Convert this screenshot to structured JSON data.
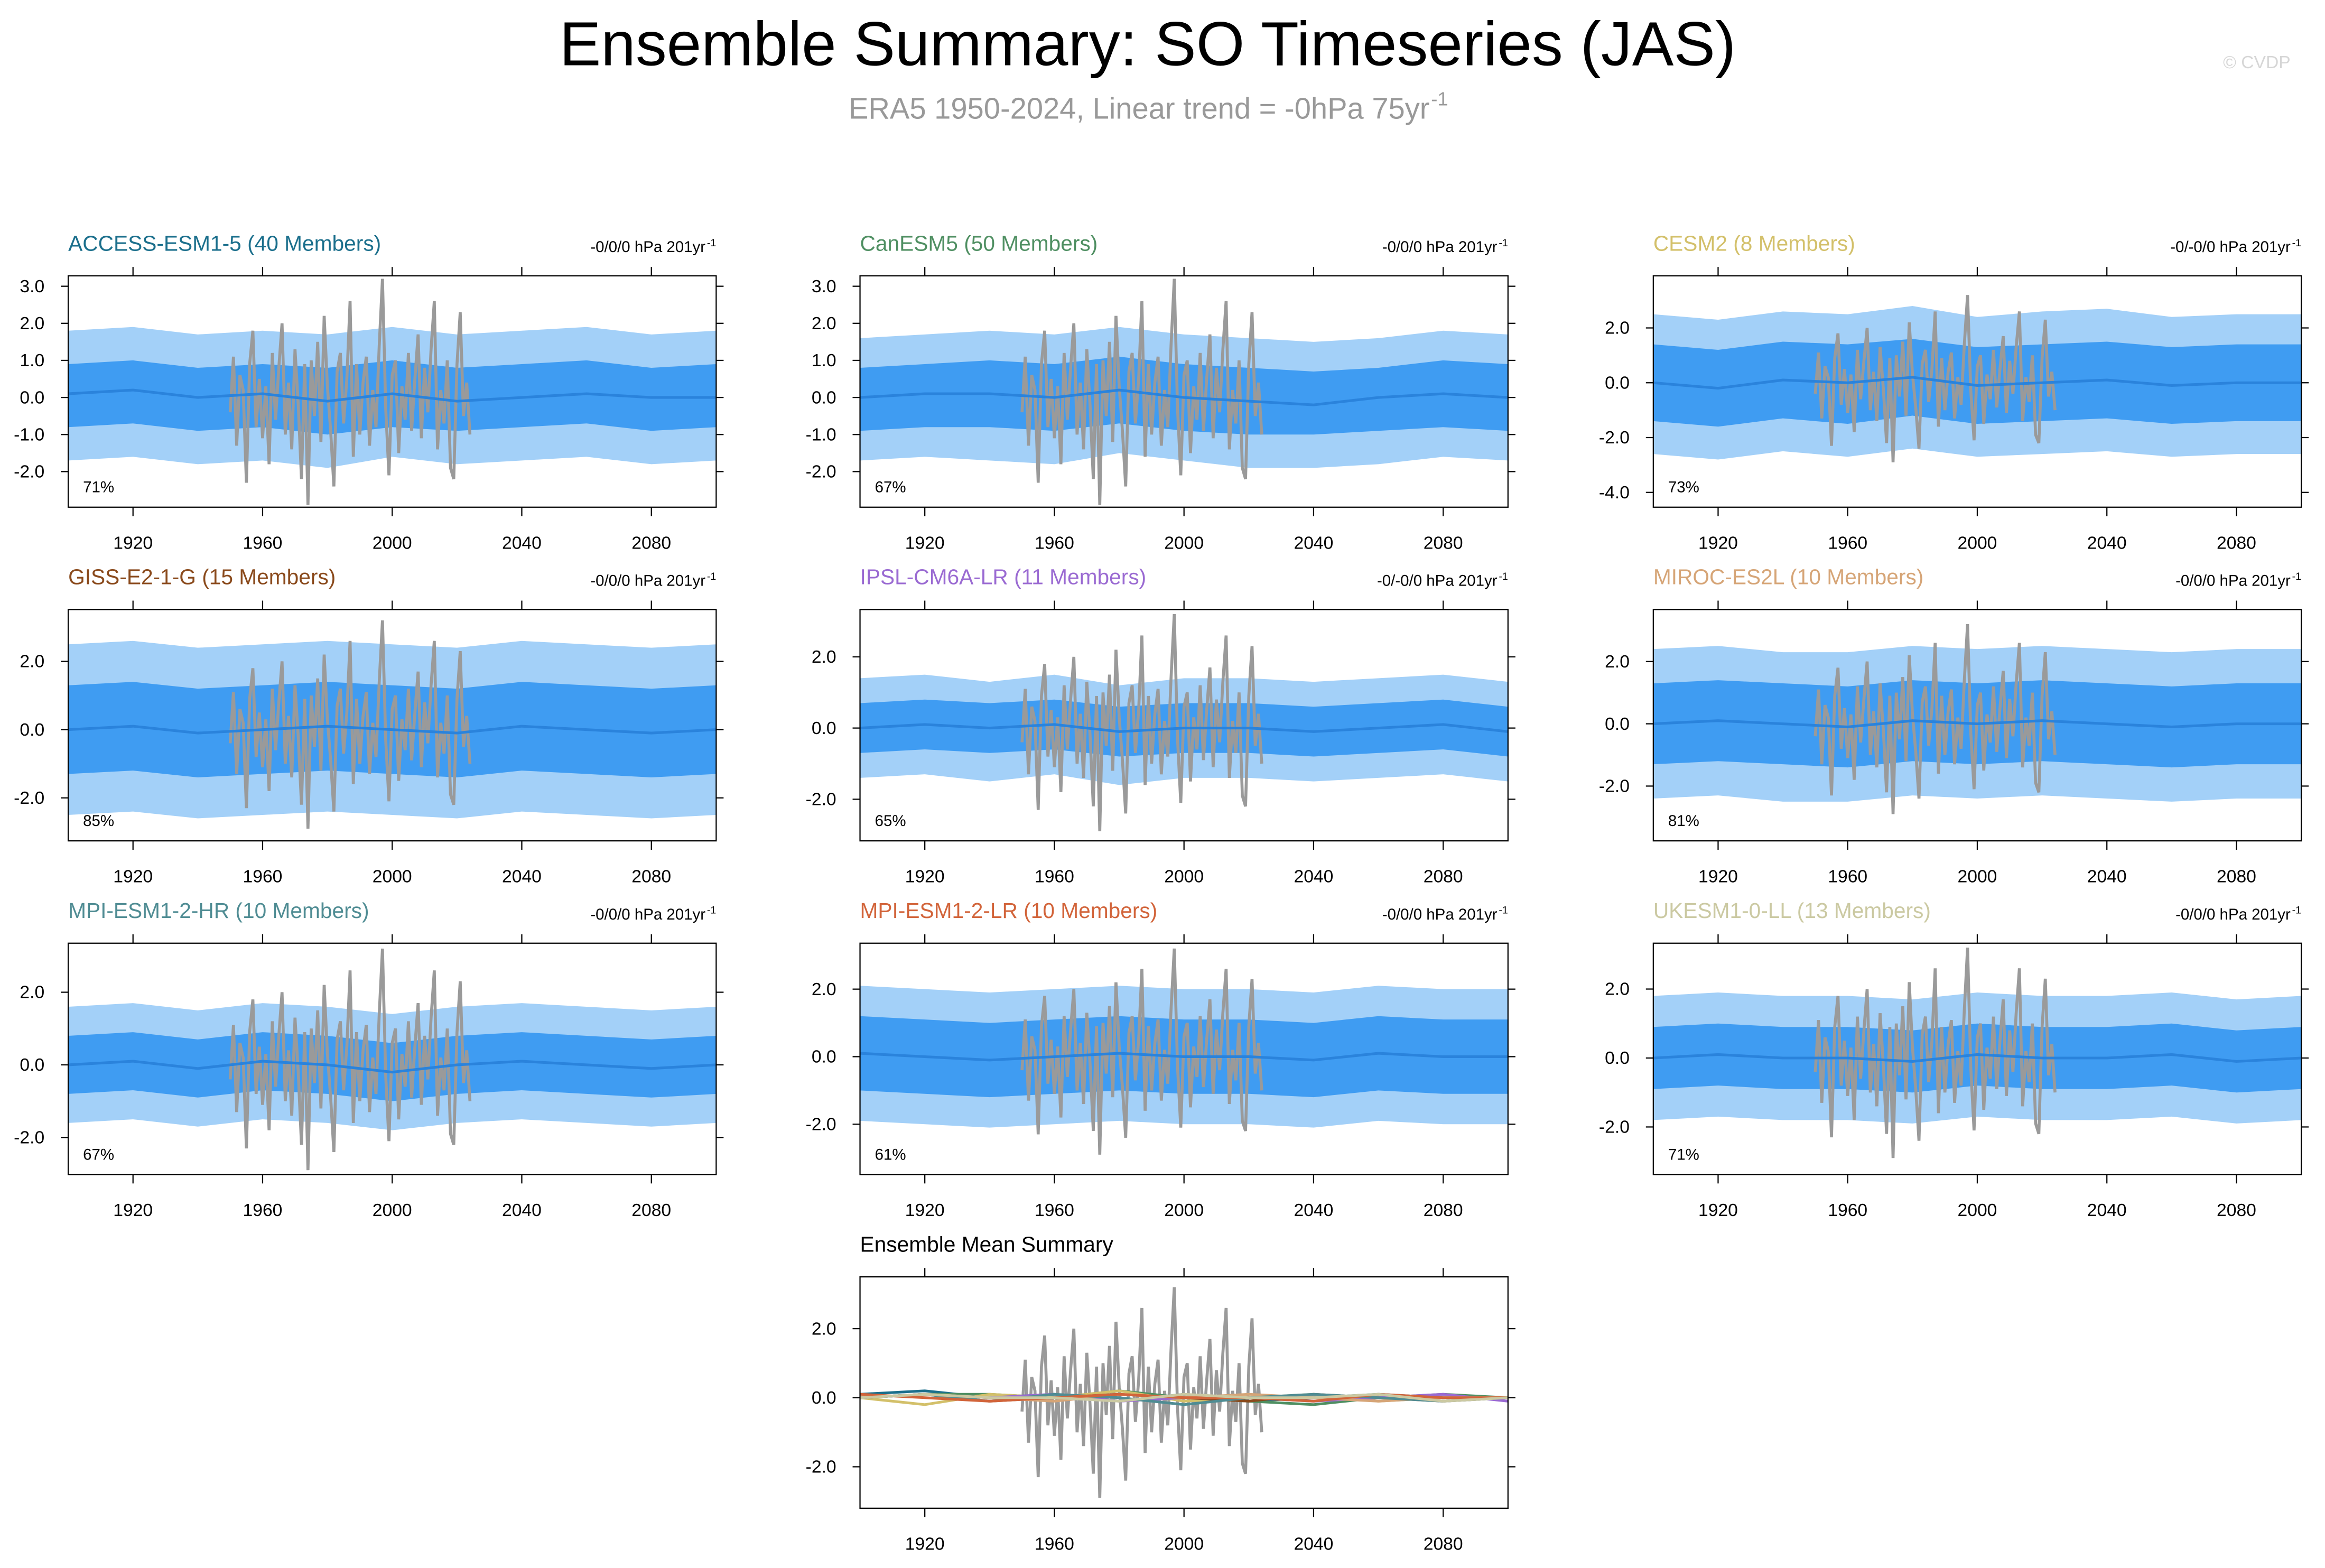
{
  "title": "Ensemble Summary: SO Timeseries (JAS)",
  "subtitle": "ERA5 1950-2024, Linear trend = -0hPa 75yr",
  "subtitle_sup": "-1",
  "watermark": "© CVDP",
  "band_colors": {
    "outer": "#a3d0f8",
    "inner": "#3f9cf2",
    "mean": "#2a83dc"
  },
  "observed": {
    "color": "#9a9a9a",
    "x": [
      1950,
      1951,
      1952,
      1953,
      1954,
      1955,
      1956,
      1957,
      1958,
      1959,
      1960,
      1961,
      1962,
      1963,
      1964,
      1965,
      1966,
      1967,
      1968,
      1969,
      1970,
      1971,
      1972,
      1973,
      1974,
      1975,
      1976,
      1977,
      1978,
      1979,
      1980,
      1981,
      1982,
      1983,
      1984,
      1985,
      1986,
      1987,
      1988,
      1989,
      1990,
      1991,
      1992,
      1993,
      1994,
      1995,
      1996,
      1997,
      1998,
      1999,
      2000,
      2001,
      2002,
      2003,
      2004,
      2005,
      2006,
      2007,
      2008,
      2009,
      2010,
      2011,
      2012,
      2013,
      2014,
      2015,
      2016,
      2017,
      2018,
      2019,
      2020,
      2021,
      2022,
      2023,
      2024
    ],
    "values": [
      -0.4,
      1.1,
      -1.3,
      0.6,
      0.2,
      -2.3,
      0.9,
      1.8,
      -0.8,
      0.5,
      -1.1,
      0.3,
      -1.8,
      1.2,
      -0.6,
      0.8,
      2.0,
      -1.0,
      0.4,
      -1.4,
      1.3,
      -0.2,
      -2.2,
      0.9,
      -2.9,
      1.0,
      -0.5,
      1.5,
      -1.2,
      2.2,
      0.3,
      -0.9,
      -2.4,
      0.7,
      1.2,
      -0.7,
      0.5,
      2.6,
      -1.6,
      0.9,
      -1.0,
      0.4,
      1.1,
      -1.3,
      0.2,
      -0.8,
      1.4,
      3.2,
      -0.3,
      -2.1,
      0.6,
      1.0,
      -1.5,
      0.3,
      -0.6,
      1.2,
      -0.9,
      0.5,
      1.7,
      -1.1,
      0.8,
      -0.4,
      1.3,
      2.6,
      -1.4,
      0.2,
      -0.7,
      1.0,
      -1.9,
      -2.2,
      0.9,
      2.3,
      -0.5,
      0.4,
      -1.0
    ]
  },
  "chart_data": [
    {
      "type": "area",
      "title": "ACCESS-ESM1-5 (40 Members)",
      "title_color": "#1b6f8c",
      "trend_label": "-0/0/0 hPa 201yr",
      "trend_sup": "-1",
      "pct_label": "71%",
      "xlim": [
        1900,
        2100
      ],
      "xticks": [
        1920,
        1960,
        2000,
        2040,
        2080
      ],
      "ylim": [
        -2.96,
        3.28
      ],
      "yticks": [
        {
          "value": 3,
          "label": "3.0"
        },
        {
          "value": 2,
          "label": "2.0"
        },
        {
          "value": 1,
          "label": "1.0"
        },
        {
          "value": 0,
          "label": "0.0"
        },
        {
          "value": -1,
          "label": "-1.0"
        },
        {
          "value": -2,
          "label": "-2.0"
        }
      ],
      "x": [
        1900,
        1920,
        1940,
        1960,
        1980,
        2000,
        2020,
        2040,
        2060,
        2080,
        2100
      ],
      "mean": [
        0.1,
        0.2,
        0.0,
        0.1,
        -0.1,
        0.1,
        -0.1,
        0.0,
        0.1,
        0.0,
        0.0
      ],
      "inner_band": {
        "lower": [
          -0.8,
          -0.7,
          -0.9,
          -0.8,
          -1.0,
          -0.8,
          -0.9,
          -0.8,
          -0.7,
          -0.9,
          -0.8
        ],
        "upper": [
          0.9,
          1.0,
          0.8,
          0.9,
          0.8,
          1.0,
          0.8,
          0.9,
          1.0,
          0.8,
          0.9
        ]
      },
      "outer_band": {
        "lower": [
          -1.7,
          -1.6,
          -1.8,
          -1.7,
          -1.9,
          -1.6,
          -1.8,
          -1.7,
          -1.6,
          -1.8,
          -1.7
        ],
        "upper": [
          1.8,
          1.9,
          1.7,
          1.8,
          1.7,
          1.9,
          1.7,
          1.8,
          1.9,
          1.7,
          1.8
        ]
      }
    },
    {
      "type": "area",
      "title": "CanESM5 (50 Members)",
      "title_color": "#4f8f62",
      "trend_label": "-0/0/0 hPa 201yr",
      "trend_sup": "-1",
      "pct_label": "67%",
      "xlim": [
        1900,
        2100
      ],
      "xticks": [
        1920,
        1960,
        2000,
        2040,
        2080
      ],
      "ylim": [
        -2.96,
        3.28
      ],
      "yticks": [
        {
          "value": 3,
          "label": "3.0"
        },
        {
          "value": 2,
          "label": "2.0"
        },
        {
          "value": 1,
          "label": "1.0"
        },
        {
          "value": 0,
          "label": "0.0"
        },
        {
          "value": -1,
          "label": "-1.0"
        },
        {
          "value": -2,
          "label": "-2.0"
        }
      ],
      "x": [
        1900,
        1920,
        1940,
        1960,
        1980,
        2000,
        2020,
        2040,
        2060,
        2080,
        2100
      ],
      "mean": [
        0.0,
        0.1,
        0.1,
        0.0,
        0.2,
        0.0,
        -0.1,
        -0.2,
        0.0,
        0.1,
        0.0
      ],
      "inner_band": {
        "lower": [
          -0.9,
          -0.8,
          -0.8,
          -0.9,
          -0.7,
          -0.9,
          -1.0,
          -1.0,
          -0.9,
          -0.8,
          -0.9
        ],
        "upper": [
          0.8,
          0.9,
          1.0,
          0.9,
          1.1,
          0.9,
          0.8,
          0.7,
          0.8,
          1.0,
          0.9
        ]
      },
      "outer_band": {
        "lower": [
          -1.7,
          -1.6,
          -1.7,
          -1.8,
          -1.5,
          -1.7,
          -1.9,
          -1.9,
          -1.8,
          -1.6,
          -1.7
        ],
        "upper": [
          1.6,
          1.7,
          1.8,
          1.7,
          1.9,
          1.7,
          1.6,
          1.5,
          1.6,
          1.8,
          1.7
        ]
      }
    },
    {
      "type": "area",
      "title": "CESM2 (8 Members)",
      "title_color": "#d3c06a",
      "trend_label": "-0/-0/0 hPa 201yr",
      "trend_sup": "-1",
      "pct_label": "73%",
      "xlim": [
        1900,
        2100
      ],
      "xticks": [
        1920,
        1960,
        2000,
        2040,
        2080
      ],
      "ylim": [
        -4.54,
        3.9
      ],
      "yticks": [
        {
          "value": 2,
          "label": "2.0"
        },
        {
          "value": 0,
          "label": "0.0"
        },
        {
          "value": -2,
          "label": "-2.0"
        },
        {
          "value": -4,
          "label": "-4.0"
        }
      ],
      "x": [
        1900,
        1920,
        1940,
        1960,
        1980,
        2000,
        2020,
        2040,
        2060,
        2080,
        2100
      ],
      "mean": [
        0.0,
        -0.2,
        0.1,
        0.0,
        0.2,
        -0.1,
        0.0,
        0.1,
        -0.1,
        0.0,
        0.0
      ],
      "inner_band": {
        "lower": [
          -1.4,
          -1.6,
          -1.3,
          -1.5,
          -1.2,
          -1.5,
          -1.4,
          -1.3,
          -1.5,
          -1.4,
          -1.4
        ],
        "upper": [
          1.4,
          1.2,
          1.5,
          1.4,
          1.6,
          1.3,
          1.4,
          1.5,
          1.3,
          1.4,
          1.4
        ]
      },
      "outer_band": {
        "lower": [
          -2.6,
          -2.8,
          -2.5,
          -2.7,
          -2.4,
          -2.7,
          -2.6,
          -2.5,
          -2.7,
          -2.6,
          -2.6
        ],
        "upper": [
          2.5,
          2.3,
          2.6,
          2.5,
          2.8,
          2.4,
          2.6,
          2.7,
          2.4,
          2.5,
          2.5
        ]
      }
    },
    {
      "type": "area",
      "title": "GISS-E2-1-G (15 Members)",
      "title_color": "#8a4a1c",
      "trend_label": "-0/0/0 hPa 201yr",
      "trend_sup": "-1",
      "pct_label": "85%",
      "xlim": [
        1900,
        2100
      ],
      "xticks": [
        1920,
        1960,
        2000,
        2040,
        2080
      ],
      "ylim": [
        -3.26,
        3.52
      ],
      "yticks": [
        {
          "value": 2,
          "label": "2.0"
        },
        {
          "value": 0,
          "label": "0.0"
        },
        {
          "value": -2,
          "label": "-2.0"
        }
      ],
      "x": [
        1900,
        1920,
        1940,
        1960,
        1980,
        2000,
        2020,
        2040,
        2060,
        2080,
        2100
      ],
      "mean": [
        0.0,
        0.1,
        -0.1,
        0.0,
        0.1,
        0.0,
        -0.1,
        0.1,
        0.0,
        -0.1,
        0.0
      ],
      "inner_band": {
        "lower": [
          -1.3,
          -1.2,
          -1.4,
          -1.3,
          -1.2,
          -1.3,
          -1.4,
          -1.2,
          -1.3,
          -1.4,
          -1.3
        ],
        "upper": [
          1.3,
          1.4,
          1.2,
          1.3,
          1.4,
          1.3,
          1.2,
          1.4,
          1.3,
          1.2,
          1.3
        ]
      },
      "outer_band": {
        "lower": [
          -2.5,
          -2.4,
          -2.6,
          -2.5,
          -2.4,
          -2.5,
          -2.6,
          -2.4,
          -2.5,
          -2.6,
          -2.5
        ],
        "upper": [
          2.5,
          2.6,
          2.4,
          2.5,
          2.6,
          2.5,
          2.4,
          2.6,
          2.5,
          2.4,
          2.5
        ]
      }
    },
    {
      "type": "area",
      "title": "IPSL-CM6A-LR (11 Members)",
      "title_color": "#9a6ad2",
      "trend_label": "-0/-0/0 hPa 201yr",
      "trend_sup": "-1",
      "pct_label": "65%",
      "xlim": [
        1900,
        2100
      ],
      "xticks": [
        1920,
        1960,
        2000,
        2040,
        2080
      ],
      "ylim": [
        -3.17,
        3.33
      ],
      "yticks": [
        {
          "value": 2,
          "label": "2.0"
        },
        {
          "value": 0,
          "label": "0.0"
        },
        {
          "value": -2,
          "label": "-2.0"
        }
      ],
      "x": [
        1900,
        1920,
        1940,
        1960,
        1980,
        2000,
        2020,
        2040,
        2060,
        2080,
        2100
      ],
      "mean": [
        0.0,
        0.1,
        0.0,
        0.1,
        -0.1,
        0.0,
        0.0,
        -0.1,
        0.0,
        0.1,
        -0.1
      ],
      "inner_band": {
        "lower": [
          -0.7,
          -0.6,
          -0.7,
          -0.6,
          -0.8,
          -0.7,
          -0.7,
          -0.8,
          -0.7,
          -0.6,
          -0.8
        ],
        "upper": [
          0.7,
          0.8,
          0.7,
          0.8,
          0.6,
          0.7,
          0.7,
          0.6,
          0.7,
          0.8,
          0.6
        ]
      },
      "outer_band": {
        "lower": [
          -1.4,
          -1.3,
          -1.5,
          -1.3,
          -1.6,
          -1.4,
          -1.4,
          -1.5,
          -1.4,
          -1.3,
          -1.5
        ],
        "upper": [
          1.4,
          1.5,
          1.3,
          1.5,
          1.2,
          1.4,
          1.4,
          1.3,
          1.4,
          1.5,
          1.3
        ]
      }
    },
    {
      "type": "area",
      "title": "MIROC-ES2L (10 Members)",
      "title_color": "#d6a577",
      "trend_label": "-0/0/0 hPa 201yr",
      "trend_sup": "-1",
      "pct_label": "81%",
      "xlim": [
        1900,
        2100
      ],
      "xticks": [
        1920,
        1960,
        2000,
        2040,
        2080
      ],
      "ylim": [
        -3.76,
        3.67
      ],
      "yticks": [
        {
          "value": 2,
          "label": "2.0"
        },
        {
          "value": 0,
          "label": "0.0"
        },
        {
          "value": -2,
          "label": "-2.0"
        }
      ],
      "x": [
        1900,
        1920,
        1940,
        1960,
        1980,
        2000,
        2020,
        2040,
        2060,
        2080,
        2100
      ],
      "mean": [
        0.0,
        0.1,
        0.0,
        -0.1,
        0.1,
        0.0,
        0.1,
        0.0,
        -0.1,
        0.0,
        0.0
      ],
      "inner_band": {
        "lower": [
          -1.3,
          -1.2,
          -1.3,
          -1.4,
          -1.2,
          -1.3,
          -1.2,
          -1.3,
          -1.4,
          -1.3,
          -1.3
        ],
        "upper": [
          1.3,
          1.4,
          1.3,
          1.2,
          1.4,
          1.3,
          1.4,
          1.3,
          1.2,
          1.3,
          1.3
        ]
      },
      "outer_band": {
        "lower": [
          -2.4,
          -2.3,
          -2.5,
          -2.5,
          -2.3,
          -2.4,
          -2.3,
          -2.4,
          -2.5,
          -2.4,
          -2.4
        ],
        "upper": [
          2.4,
          2.5,
          2.3,
          2.3,
          2.5,
          2.4,
          2.5,
          2.4,
          2.3,
          2.4,
          2.4
        ]
      }
    },
    {
      "type": "area",
      "title": "MPI-ESM1-2-HR (10 Members)",
      "title_color": "#4f8c93",
      "trend_label": "-0/0/0 hPa 201yr",
      "trend_sup": "-1",
      "pct_label": "67%",
      "xlim": [
        1900,
        2100
      ],
      "xticks": [
        1920,
        1960,
        2000,
        2040,
        2080
      ],
      "ylim": [
        -3.02,
        3.35
      ],
      "yticks": [
        {
          "value": 2,
          "label": "2.0"
        },
        {
          "value": 0,
          "label": "0.0"
        },
        {
          "value": -2,
          "label": "-2.0"
        }
      ],
      "x": [
        1900,
        1920,
        1940,
        1960,
        1980,
        2000,
        2020,
        2040,
        2060,
        2080,
        2100
      ],
      "mean": [
        0.0,
        0.1,
        -0.1,
        0.1,
        0.0,
        -0.2,
        0.0,
        0.1,
        0.0,
        -0.1,
        0.0
      ],
      "inner_band": {
        "lower": [
          -0.8,
          -0.7,
          -0.9,
          -0.7,
          -0.8,
          -1.0,
          -0.8,
          -0.7,
          -0.8,
          -0.9,
          -0.8
        ],
        "upper": [
          0.8,
          0.9,
          0.7,
          0.9,
          0.8,
          0.6,
          0.8,
          0.9,
          0.8,
          0.7,
          0.8
        ]
      },
      "outer_band": {
        "lower": [
          -1.6,
          -1.5,
          -1.7,
          -1.5,
          -1.6,
          -1.8,
          -1.6,
          -1.5,
          -1.6,
          -1.7,
          -1.6
        ],
        "upper": [
          1.6,
          1.7,
          1.5,
          1.7,
          1.6,
          1.4,
          1.6,
          1.7,
          1.6,
          1.5,
          1.6
        ]
      }
    },
    {
      "type": "area",
      "title": "MPI-ESM1-2-LR (10 Members)",
      "title_color": "#d2643a",
      "trend_label": "-0/0/0 hPa 201yr",
      "trend_sup": "-1",
      "pct_label": "61%",
      "xlim": [
        1900,
        2100
      ],
      "xticks": [
        1920,
        1960,
        2000,
        2040,
        2080
      ],
      "ylim": [
        -3.49,
        3.36
      ],
      "yticks": [
        {
          "value": 2,
          "label": "2.0"
        },
        {
          "value": 0,
          "label": "0.0"
        },
        {
          "value": -2,
          "label": "-2.0"
        }
      ],
      "x": [
        1900,
        1920,
        1940,
        1960,
        1980,
        2000,
        2020,
        2040,
        2060,
        2080,
        2100
      ],
      "mean": [
        0.1,
        0.0,
        -0.1,
        0.0,
        0.1,
        0.0,
        0.0,
        -0.1,
        0.1,
        0.0,
        0.0
      ],
      "inner_band": {
        "lower": [
          -1.0,
          -1.1,
          -1.2,
          -1.1,
          -1.0,
          -1.1,
          -1.1,
          -1.2,
          -1.0,
          -1.1,
          -1.1
        ],
        "upper": [
          1.2,
          1.1,
          1.0,
          1.1,
          1.2,
          1.1,
          1.1,
          1.0,
          1.2,
          1.1,
          1.1
        ]
      },
      "outer_band": {
        "lower": [
          -1.9,
          -2.0,
          -2.1,
          -2.0,
          -1.9,
          -2.0,
          -2.0,
          -2.1,
          -1.9,
          -2.0,
          -2.0
        ],
        "upper": [
          2.1,
          2.0,
          1.9,
          2.0,
          2.1,
          2.0,
          2.0,
          1.9,
          2.1,
          2.0,
          2.0
        ]
      }
    },
    {
      "type": "area",
      "title": "UKESM1-0-LL (13 Members)",
      "title_color": "#cbc9a2",
      "trend_label": "-0/0/0 hPa 201yr",
      "trend_sup": "-1",
      "pct_label": "71%",
      "xlim": [
        1900,
        2100
      ],
      "xticks": [
        1920,
        1960,
        2000,
        2040,
        2080
      ],
      "ylim": [
        -3.38,
        3.33
      ],
      "yticks": [
        {
          "value": 2,
          "label": "2.0"
        },
        {
          "value": 0,
          "label": "0.0"
        },
        {
          "value": -2,
          "label": "-2.0"
        }
      ],
      "x": [
        1900,
        1920,
        1940,
        1960,
        1980,
        2000,
        2020,
        2040,
        2060,
        2080,
        2100
      ],
      "mean": [
        0.0,
        0.1,
        0.0,
        0.0,
        -0.1,
        0.1,
        0.0,
        0.0,
        0.1,
        -0.1,
        0.0
      ],
      "inner_band": {
        "lower": [
          -0.9,
          -0.8,
          -0.9,
          -0.9,
          -1.0,
          -0.8,
          -0.9,
          -0.9,
          -0.8,
          -1.0,
          -0.9
        ],
        "upper": [
          0.9,
          1.0,
          0.9,
          0.9,
          0.8,
          1.0,
          0.9,
          0.9,
          1.0,
          0.8,
          0.9
        ]
      },
      "outer_band": {
        "lower": [
          -1.8,
          -1.7,
          -1.8,
          -1.8,
          -1.9,
          -1.7,
          -1.8,
          -1.8,
          -1.7,
          -1.9,
          -1.8
        ],
        "upper": [
          1.8,
          1.9,
          1.8,
          1.8,
          1.7,
          1.9,
          1.8,
          1.8,
          1.9,
          1.7,
          1.8
        ]
      }
    },
    {
      "type": "line",
      "title": "Ensemble Mean Summary",
      "xlim": [
        1900,
        2100
      ],
      "xticks": [
        1920,
        1960,
        2000,
        2040,
        2080
      ],
      "ylim": [
        -3.2,
        3.5
      ],
      "yticks": [
        {
          "value": 2,
          "label": "2.0"
        },
        {
          "value": 0,
          "label": "0.0"
        },
        {
          "value": -2,
          "label": "-2.0"
        }
      ]
    }
  ]
}
